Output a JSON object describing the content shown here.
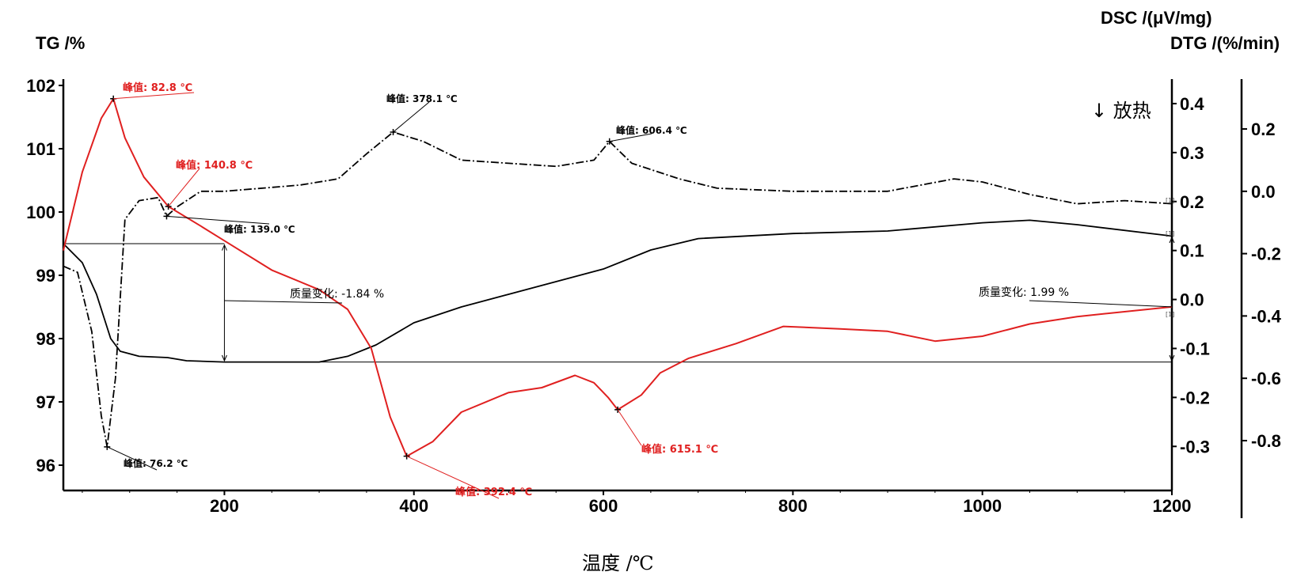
{
  "chart_data": {
    "type": "line",
    "title": "",
    "xlabel": "温度 /℃",
    "xlim": [
      30,
      1200
    ],
    "x_ticks": [
      200,
      400,
      600,
      800,
      1000,
      1200
    ],
    "axes": {
      "tg": {
        "label": "TG /%",
        "lim": [
          95.6,
          102.1
        ],
        "ticks": [
          96,
          97,
          98,
          99,
          100,
          101,
          102
        ]
      },
      "dsc": {
        "label": "DSC /(μV/mg)",
        "lim": [
          -0.39,
          0.45
        ],
        "ticks": [
          "0.4",
          "0.3",
          "0.2",
          "0.1",
          "0.0",
          "-0.1",
          "-0.2",
          "-0.3"
        ]
      },
      "dtg": {
        "label": "DTG /(%/min)",
        "lim": [
          -0.96,
          0.36
        ],
        "ticks": [
          "0.2",
          "0.0",
          "-0.2",
          "-0.4",
          "-0.6",
          "-0.8"
        ]
      }
    },
    "exotherm_label": "↓ 放热",
    "series": [
      {
        "axis": "tg",
        "color": "#000000",
        "style": "solid",
        "points": [
          [
            30,
            99.5
          ],
          [
            50,
            99.2
          ],
          [
            65,
            98.7
          ],
          [
            80,
            98.0
          ],
          [
            90,
            97.8
          ],
          [
            110,
            97.72
          ],
          [
            140,
            97.7
          ],
          [
            160,
            97.65
          ],
          [
            200,
            97.63
          ],
          [
            300,
            97.63
          ],
          [
            330,
            97.72
          ],
          [
            360,
            97.9
          ],
          [
            400,
            98.25
          ],
          [
            450,
            98.5
          ],
          [
            500,
            98.7
          ],
          [
            550,
            98.9
          ],
          [
            600,
            99.1
          ],
          [
            650,
            99.4
          ],
          [
            700,
            99.58
          ],
          [
            800,
            99.66
          ],
          [
            900,
            99.7
          ],
          [
            1000,
            99.83
          ],
          [
            1050,
            99.87
          ],
          [
            1100,
            99.8
          ],
          [
            1200,
            99.62
          ]
        ]
      },
      {
        "axis": "dsc",
        "color": "#e02020",
        "style": "solid",
        "points": [
          [
            30,
            0.1
          ],
          [
            50,
            0.26
          ],
          [
            70,
            0.37
          ],
          [
            82.8,
            0.41
          ],
          [
            95,
            0.33
          ],
          [
            115,
            0.25
          ],
          [
            140.8,
            0.19
          ],
          [
            175,
            0.15
          ],
          [
            200,
            0.12
          ],
          [
            250,
            0.06
          ],
          [
            300,
            0.02
          ],
          [
            330,
            -0.02
          ],
          [
            355,
            -0.1
          ],
          [
            375,
            -0.24
          ],
          [
            392.4,
            -0.32
          ],
          [
            420,
            -0.29
          ],
          [
            450,
            -0.23
          ],
          [
            500,
            -0.19
          ],
          [
            535,
            -0.18
          ],
          [
            570,
            -0.155
          ],
          [
            590,
            -0.17
          ],
          [
            605,
            -0.2
          ],
          [
            615.1,
            -0.225
          ],
          [
            640,
            -0.195
          ],
          [
            660,
            -0.15
          ],
          [
            690,
            -0.12
          ],
          [
            740,
            -0.09
          ],
          [
            790,
            -0.055
          ],
          [
            850,
            -0.06
          ],
          [
            900,
            -0.065
          ],
          [
            950,
            -0.085
          ],
          [
            1000,
            -0.075
          ],
          [
            1050,
            -0.05
          ],
          [
            1100,
            -0.035
          ],
          [
            1150,
            -0.025
          ],
          [
            1200,
            -0.015
          ]
        ]
      },
      {
        "axis": "dtg",
        "color": "#000000",
        "style": "dashdot",
        "points": [
          [
            30,
            -0.24
          ],
          [
            45,
            -0.26
          ],
          [
            60,
            -0.45
          ],
          [
            70,
            -0.72
          ],
          [
            76.2,
            -0.82
          ],
          [
            85,
            -0.6
          ],
          [
            95,
            -0.09
          ],
          [
            110,
            -0.03
          ],
          [
            130,
            -0.02
          ],
          [
            139.0,
            -0.08
          ],
          [
            150,
            -0.05
          ],
          [
            175,
            0.0
          ],
          [
            200,
            0.0
          ],
          [
            280,
            0.02
          ],
          [
            320,
            0.04
          ],
          [
            350,
            0.12
          ],
          [
            378.1,
            0.19
          ],
          [
            410,
            0.16
          ],
          [
            450,
            0.1
          ],
          [
            500,
            0.09
          ],
          [
            550,
            0.08
          ],
          [
            590,
            0.1
          ],
          [
            606.4,
            0.16
          ],
          [
            630,
            0.09
          ],
          [
            680,
            0.04
          ],
          [
            720,
            0.01
          ],
          [
            800,
            0.0
          ],
          [
            900,
            0.0
          ],
          [
            970,
            0.04
          ],
          [
            1000,
            0.03
          ],
          [
            1050,
            -0.01
          ],
          [
            1100,
            -0.04
          ],
          [
            1150,
            -0.03
          ],
          [
            1200,
            -0.04
          ]
        ]
      }
    ],
    "annotations": [
      {
        "text": "峰值: 82.8 ℃",
        "color": "red"
      },
      {
        "text": "峰值: 140.8 ℃",
        "color": "red"
      },
      {
        "text": "峰值: 392.4 ℃",
        "color": "red"
      },
      {
        "text": "峰值: 615.1 ℃",
        "color": "red"
      },
      {
        "text": "峰值: 378.1 ℃",
        "color": "black"
      },
      {
        "text": "峰值: 606.4 ℃",
        "color": "black"
      },
      {
        "text": "峰值: 139.0 ℃",
        "color": "black"
      },
      {
        "text": "峰值: 76.2 ℃",
        "color": "black"
      },
      {
        "text": "质量变化: -1.84 %",
        "color": "black"
      },
      {
        "text": "质量变化: 1.99 %",
        "color": "black"
      }
    ],
    "small_markers": [
      "[1]",
      "[1]",
      "[1]"
    ]
  }
}
